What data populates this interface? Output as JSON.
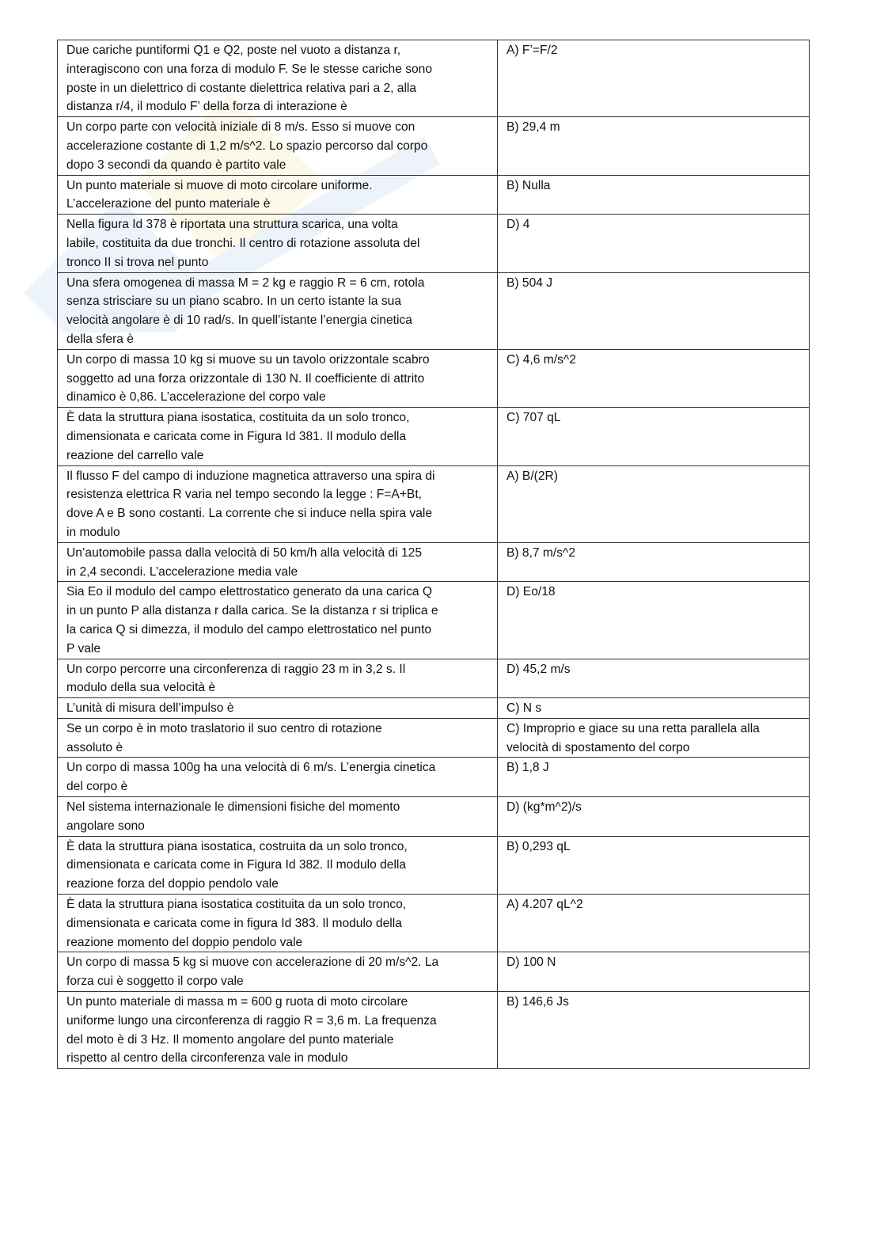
{
  "rows": [
    {
      "q": "Due cariche puntiformi Q1 e Q2, poste nel vuoto a distanza r,\ninteragiscono con una forza di modulo F. Se le stesse cariche sono\nposte in un dielettrico di costante dielettrica relativa pari a 2, alla\ndistanza r/4, il modulo F’ della forza di interazione è",
      "a": "A) F’=F/2"
    },
    {
      "q": "Un corpo parte con velocità iniziale di 8 m/s. Esso si muove con\naccelerazione costante di 1,2 m/s^2. Lo spazio percorso dal corpo\ndopo 3 secondi da quando è partito vale",
      "a": "B) 29,4 m"
    },
    {
      "q": "Un punto materiale si muove di moto circolare uniforme.\nL’accelerazione del punto materiale è",
      "a": "B) Nulla"
    },
    {
      "q": "Nella figura Id 378 è riportata una struttura scarica, una volta\nlabile, costituita da due tronchi. Il centro di rotazione assoluta del\ntronco II si trova nel punto",
      "a": "D) 4"
    },
    {
      "q": "Una sfera omogenea di massa M = 2 kg e raggio R = 6 cm, rotola\nsenza strisciare su un piano scabro. In un certo istante la sua\nvelocità angolare è di 10 rad/s. In quell’istante l’energia cinetica\ndella sfera è",
      "a": "B)  504 J"
    },
    {
      "q": "Un corpo di massa 10 kg si muove su un tavolo orizzontale scabro\nsoggetto ad una forza orizzontale di 130 N. Il coefficiente di attrito\ndinamico è 0,86. L’accelerazione del corpo vale",
      "a": "C) 4,6 m/s^2"
    },
    {
      "q": "È data la struttura piana isostatica, costituita da un solo tronco,\ndimensionata e caricata come in Figura Id 381. Il modulo della\nreazione del carrello vale",
      "a": "C) 707 qL"
    },
    {
      "q": "Il flusso F del campo di induzione magnetica attraverso una spira di\nresistenza elettrica R varia nel tempo secondo la legge : F=A+Bt,\ndove A e B sono costanti. La corrente che si induce nella spira vale\nin modulo",
      "a": "A) B/(2R)"
    },
    {
      "q": "Un’automobile passa dalla velocità di 50 km/h alla velocità di 125\nin 2,4 secondi.  L’accelerazione media vale",
      "a": "B) 8,7 m/s^2"
    },
    {
      "q": "Sia Eo il modulo del campo elettrostatico generato da una carica Q\nin un punto P alla distanza r dalla carica. Se la distanza r si triplica e\nla carica Q si dimezza, il modulo del campo elettrostatico nel punto\nP vale",
      "a": "D) Eo/18"
    },
    {
      "q": "Un corpo percorre una circonferenza di raggio 23 m in 3,2 s. Il\nmodulo della sua velocità è",
      "a": "D) 45,2 m/s"
    },
    {
      "q": "L’unità di misura dell’impulso è",
      "a": "C) N s"
    },
    {
      "q": "Se un corpo è in moto traslatorio il suo centro di rotazione\nassoluto è",
      "a": "C) Improprio e giace su una retta parallela alla\nvelocità di spostamento del corpo"
    },
    {
      "q": "Un corpo di massa 100g ha una velocità di 6 m/s. L’energia cinetica\ndel corpo è",
      "a": "B) 1,8 J"
    },
    {
      "q": "Nel sistema internazionale le dimensioni fisiche del momento\nangolare sono",
      "a": "D) (kg*m^2)/s"
    },
    {
      "q": "È data la struttura piana isostatica, costruita da un solo tronco,\ndimensionata e caricata come in Figura Id 382. Il modulo della\nreazione forza del doppio pendolo vale",
      "a": "B) 0,293 qL"
    },
    {
      "q": "È data la struttura piana isostatica costituita da un solo tronco,\ndimensionata e caricata come in figura Id 383. Il modulo della\nreazione momento del doppio pendolo vale",
      "a": "A) 4.207 qL^2"
    },
    {
      "q": "Un corpo di massa 5 kg si muove con accelerazione di 20 m/s^2. La\nforza cui è soggetto il corpo vale",
      "a": "D) 100 N"
    },
    {
      "q": "Un punto materiale di massa m = 600 g ruota di moto circolare\nuniforme lungo una circonferenza di raggio R = 3,6 m. La frequenza\ndel moto è di 3 Hz. Il momento angolare del punto materiale\nrispetto al centro della circonferenza vale in modulo",
      "a": "B) 146,6 Js"
    }
  ]
}
